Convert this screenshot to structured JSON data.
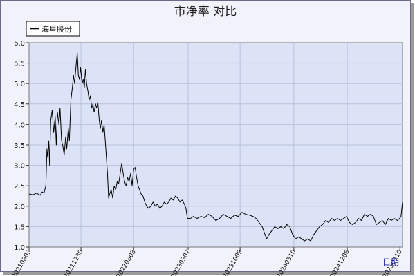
{
  "chart_data": {
    "type": "line",
    "title": "市净率  对比",
    "xlabel": "日期",
    "ylabel": "",
    "ylim": [
      1.0,
      6.0
    ],
    "y_ticks": [
      "6.0",
      "5.5",
      "5.0",
      "4.5",
      "4.0",
      "3.5",
      "3.0",
      "2.5",
      "2.0",
      "1.5",
      "1.0"
    ],
    "x_tick_labels": [
      "20210803",
      "20211230",
      "20220803",
      "20230307",
      "20231009",
      "20240510",
      "20241206",
      "20250710"
    ],
    "grid": true,
    "legend_position": "top-left",
    "series": [
      {
        "name": "海星股份",
        "color": "#000000",
        "points": [
          [
            0.0,
            2.3
          ],
          [
            0.01,
            2.28
          ],
          [
            0.02,
            2.32
          ],
          [
            0.03,
            2.27
          ],
          [
            0.035,
            2.35
          ],
          [
            0.04,
            2.32
          ],
          [
            0.045,
            2.5
          ],
          [
            0.048,
            3.4
          ],
          [
            0.05,
            3.2
          ],
          [
            0.053,
            3.6
          ],
          [
            0.055,
            3.0
          ],
          [
            0.058,
            4.1
          ],
          [
            0.062,
            4.35
          ],
          [
            0.066,
            3.8
          ],
          [
            0.07,
            4.2
          ],
          [
            0.073,
            3.5
          ],
          [
            0.076,
            4.3
          ],
          [
            0.08,
            4.0
          ],
          [
            0.083,
            4.4
          ],
          [
            0.087,
            3.6
          ],
          [
            0.09,
            3.5
          ],
          [
            0.094,
            3.25
          ],
          [
            0.098,
            3.7
          ],
          [
            0.101,
            3.4
          ],
          [
            0.105,
            3.9
          ],
          [
            0.108,
            3.6
          ],
          [
            0.112,
            4.6
          ],
          [
            0.116,
            4.9
          ],
          [
            0.119,
            5.2
          ],
          [
            0.122,
            5.0
          ],
          [
            0.126,
            5.45
          ],
          [
            0.129,
            5.75
          ],
          [
            0.132,
            5.2
          ],
          [
            0.135,
            5.1
          ],
          [
            0.138,
            5.4
          ],
          [
            0.142,
            5.0
          ],
          [
            0.145,
            5.1
          ],
          [
            0.148,
            4.9
          ],
          [
            0.151,
            5.35
          ],
          [
            0.154,
            5.0
          ],
          [
            0.158,
            4.8
          ],
          [
            0.161,
            4.6
          ],
          [
            0.164,
            4.7
          ],
          [
            0.168,
            4.4
          ],
          [
            0.171,
            4.5
          ],
          [
            0.174,
            4.3
          ],
          [
            0.178,
            4.5
          ],
          [
            0.181,
            4.4
          ],
          [
            0.184,
            4.55
          ],
          [
            0.188,
            4.1
          ],
          [
            0.191,
            3.9
          ],
          [
            0.194,
            4.1
          ],
          [
            0.198,
            3.8
          ],
          [
            0.201,
            4.0
          ],
          [
            0.204,
            3.6
          ],
          [
            0.207,
            3.2
          ],
          [
            0.21,
            2.8
          ],
          [
            0.213,
            2.2
          ],
          [
            0.216,
            2.3
          ],
          [
            0.22,
            2.4
          ],
          [
            0.224,
            2.2
          ],
          [
            0.228,
            2.5
          ],
          [
            0.232,
            2.4
          ],
          [
            0.236,
            2.6
          ],
          [
            0.24,
            2.55
          ],
          [
            0.244,
            2.8
          ],
          [
            0.248,
            3.05
          ],
          [
            0.252,
            2.8
          ],
          [
            0.256,
            2.6
          ],
          [
            0.26,
            2.5
          ],
          [
            0.264,
            2.7
          ],
          [
            0.268,
            2.6
          ],
          [
            0.272,
            2.8
          ],
          [
            0.276,
            2.5
          ],
          [
            0.28,
            2.9
          ],
          [
            0.284,
            2.95
          ],
          [
            0.288,
            2.7
          ],
          [
            0.292,
            2.5
          ],
          [
            0.296,
            2.4
          ],
          [
            0.3,
            2.3
          ],
          [
            0.305,
            2.25
          ],
          [
            0.31,
            2.1
          ],
          [
            0.315,
            2.0
          ],
          [
            0.32,
            1.95
          ],
          [
            0.326,
            2.0
          ],
          [
            0.332,
            2.1
          ],
          [
            0.338,
            2.0
          ],
          [
            0.344,
            2.05
          ],
          [
            0.35,
            1.95
          ],
          [
            0.356,
            2.0
          ],
          [
            0.362,
            2.1
          ],
          [
            0.368,
            2.05
          ],
          [
            0.374,
            2.1
          ],
          [
            0.38,
            2.2
          ],
          [
            0.386,
            2.15
          ],
          [
            0.392,
            2.25
          ],
          [
            0.398,
            2.2
          ],
          [
            0.404,
            2.1
          ],
          [
            0.41,
            2.15
          ],
          [
            0.416,
            2.05
          ],
          [
            0.42,
            1.95
          ],
          [
            0.424,
            1.7
          ],
          [
            0.432,
            1.7
          ],
          [
            0.44,
            1.75
          ],
          [
            0.45,
            1.7
          ],
          [
            0.46,
            1.75
          ],
          [
            0.47,
            1.72
          ],
          [
            0.48,
            1.8
          ],
          [
            0.49,
            1.75
          ],
          [
            0.5,
            1.65
          ],
          [
            0.51,
            1.7
          ],
          [
            0.52,
            1.8
          ],
          [
            0.53,
            1.75
          ],
          [
            0.54,
            1.7
          ],
          [
            0.55,
            1.78
          ],
          [
            0.56,
            1.75
          ],
          [
            0.57,
            1.85
          ],
          [
            0.58,
            1.8
          ],
          [
            0.59,
            1.78
          ],
          [
            0.6,
            1.75
          ],
          [
            0.608,
            1.7
          ],
          [
            0.616,
            1.6
          ],
          [
            0.624,
            1.5
          ],
          [
            0.63,
            1.35
          ],
          [
            0.636,
            1.2
          ],
          [
            0.642,
            1.3
          ],
          [
            0.65,
            1.4
          ],
          [
            0.658,
            1.5
          ],
          [
            0.666,
            1.45
          ],
          [
            0.674,
            1.5
          ],
          [
            0.682,
            1.45
          ],
          [
            0.69,
            1.55
          ],
          [
            0.698,
            1.5
          ],
          [
            0.706,
            1.3
          ],
          [
            0.714,
            1.2
          ],
          [
            0.722,
            1.25
          ],
          [
            0.73,
            1.2
          ],
          [
            0.738,
            1.15
          ],
          [
            0.746,
            1.2
          ],
          [
            0.754,
            1.15
          ],
          [
            0.762,
            1.3
          ],
          [
            0.77,
            1.4
          ],
          [
            0.778,
            1.5
          ],
          [
            0.786,
            1.55
          ],
          [
            0.794,
            1.65
          ],
          [
            0.802,
            1.6
          ],
          [
            0.81,
            1.7
          ],
          [
            0.818,
            1.65
          ],
          [
            0.826,
            1.7
          ],
          [
            0.834,
            1.65
          ],
          [
            0.842,
            1.7
          ],
          [
            0.85,
            1.75
          ],
          [
            0.858,
            1.6
          ],
          [
            0.866,
            1.55
          ],
          [
            0.874,
            1.6
          ],
          [
            0.882,
            1.7
          ],
          [
            0.89,
            1.65
          ],
          [
            0.898,
            1.8
          ],
          [
            0.906,
            1.75
          ],
          [
            0.914,
            1.8
          ],
          [
            0.922,
            1.75
          ],
          [
            0.93,
            1.55
          ],
          [
            0.938,
            1.6
          ],
          [
            0.946,
            1.65
          ],
          [
            0.954,
            1.55
          ],
          [
            0.962,
            1.7
          ],
          [
            0.97,
            1.65
          ],
          [
            0.978,
            1.7
          ],
          [
            0.986,
            1.65
          ],
          [
            0.992,
            1.7
          ],
          [
            0.996,
            1.75
          ],
          [
            1.0,
            2.1
          ]
        ]
      }
    ]
  }
}
